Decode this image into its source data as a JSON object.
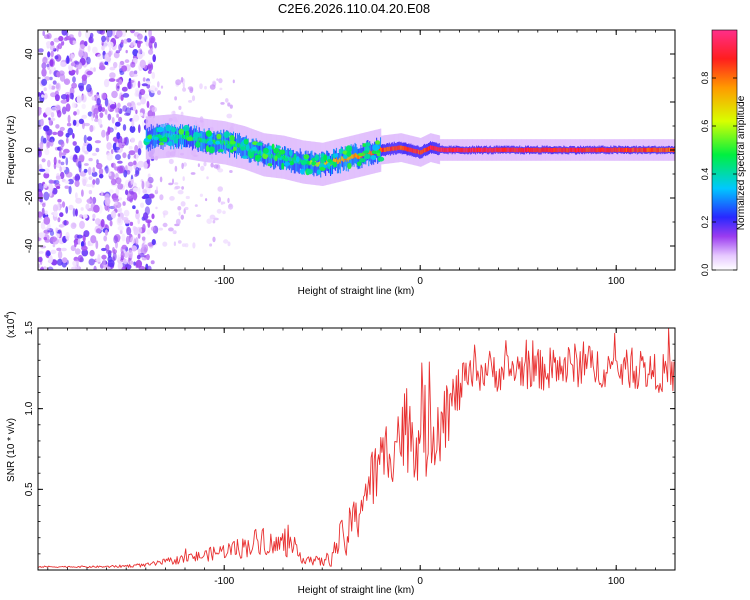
{
  "title": "C2E6.2026.110.04.20.E08",
  "colors": {
    "background": "#ffffff",
    "axis": "#000000",
    "snr_line": "#e83030",
    "axis_band": "#000000"
  },
  "colorbar": {
    "label": "Normalized spectral amplitude",
    "ticks": [
      "0.0",
      "0.2",
      "0.4",
      "0.6",
      "0.8"
    ],
    "tick_values": [
      0.0,
      0.2,
      0.4,
      0.6,
      0.8
    ],
    "range": [
      0,
      1
    ],
    "stops": [
      {
        "v": 0.0,
        "color": "#ffffff"
      },
      {
        "v": 0.06,
        "color": "#e6c8ff"
      },
      {
        "v": 0.14,
        "color": "#9b3cf0"
      },
      {
        "v": 0.22,
        "color": "#2828ff"
      },
      {
        "v": 0.34,
        "color": "#00c8ff"
      },
      {
        "v": 0.48,
        "color": "#00f040"
      },
      {
        "v": 0.62,
        "color": "#d8ff00"
      },
      {
        "v": 0.76,
        "color": "#ff9a00"
      },
      {
        "v": 0.88,
        "color": "#ff1e1e"
      },
      {
        "v": 1.0,
        "color": "#ff2e8a"
      }
    ]
  },
  "chart_data": [
    {
      "type": "heatmap",
      "name": "spectrogram",
      "xlabel": "Height of straight line (km)",
      "ylabel": "Frequency (Hz)",
      "xlim": [
        -195,
        130
      ],
      "ylim": [
        -50,
        50
      ],
      "xticks": [
        -100,
        0,
        100
      ],
      "xtick_labels": [
        "-100",
        "0",
        "100"
      ],
      "yticks": [
        -40,
        -20,
        0,
        20,
        40
      ],
      "ytick_labels": [
        "-40",
        "-20",
        "0",
        "20",
        "40"
      ],
      "zlim": [
        0,
        1
      ],
      "ridge": {
        "description": "dominant frequency trace vs height",
        "x": [
          -140,
          -125,
          -110,
          -100,
          -90,
          -80,
          -70,
          -60,
          -50,
          -40,
          -30,
          -20,
          -10,
          -5,
          0,
          5,
          10,
          50,
          100,
          130
        ],
        "y": [
          5,
          6,
          4,
          3,
          1,
          -2,
          -3,
          -5,
          -6,
          -4,
          -2,
          0,
          1,
          0,
          -1,
          1,
          0,
          0,
          0,
          0
        ],
        "amplitude": [
          0.35,
          0.4,
          0.45,
          0.45,
          0.42,
          0.4,
          0.42,
          0.45,
          0.7,
          0.75,
          0.8,
          0.85,
          0.85,
          0.9,
          0.85,
          0.9,
          0.92,
          0.9,
          0.88,
          0.82
        ]
      },
      "noise_region": {
        "x_range": [
          -195,
          -135
        ],
        "y_range": [
          -50,
          50
        ],
        "amplitude_range": [
          0.02,
          0.2
        ]
      }
    },
    {
      "type": "line",
      "name": "snr",
      "xlabel": "Height of straight line (km)",
      "ylabel": "SNR (10 * v/v)",
      "scale_label": "(x10",
      "scale_exponent": "4",
      "xlim": [
        -195,
        130
      ],
      "ylim": [
        0,
        1.5
      ],
      "xticks": [
        -100,
        0,
        100
      ],
      "xtick_labels": [
        "-100",
        "0",
        "100"
      ],
      "yticks": [
        0.5,
        1.0,
        1.5
      ],
      "ytick_labels": [
        "0.5",
        "1.0",
        "1.5"
      ],
      "series": [
        {
          "name": "SNR",
          "color": "#e83030",
          "x": [
            -195,
            -180,
            -160,
            -140,
            -130,
            -120,
            -110,
            -100,
            -90,
            -85,
            -80,
            -75,
            -70,
            -65,
            -60,
            -55,
            -50,
            -45,
            -40,
            -38,
            -35,
            -32,
            -30,
            -25,
            -20,
            -15,
            -10,
            -5,
            0,
            5,
            10,
            15,
            20,
            25,
            30,
            35,
            40,
            50,
            60,
            70,
            80,
            90,
            100,
            110,
            120,
            130
          ],
          "y": [
            0.02,
            0.02,
            0.02,
            0.03,
            0.05,
            0.07,
            0.09,
            0.12,
            0.14,
            0.17,
            0.2,
            0.14,
            0.17,
            0.12,
            0.08,
            0.06,
            0.05,
            0.08,
            0.22,
            0.15,
            0.32,
            0.3,
            0.45,
            0.55,
            0.65,
            0.78,
            0.85,
            0.88,
            0.82,
            0.88,
            0.95,
            1.0,
            1.12,
            1.2,
            1.22,
            1.25,
            1.22,
            1.25,
            1.24,
            1.25,
            1.27,
            1.26,
            1.25,
            1.24,
            1.22,
            1.22
          ],
          "noise": [
            0.005,
            0.005,
            0.006,
            0.012,
            0.02,
            0.03,
            0.04,
            0.05,
            0.07,
            0.08,
            0.1,
            0.08,
            0.08,
            0.06,
            0.04,
            0.03,
            0.03,
            0.06,
            0.1,
            0.1,
            0.14,
            0.14,
            0.16,
            0.2,
            0.22,
            0.25,
            0.27,
            0.28,
            0.3,
            0.3,
            0.28,
            0.2,
            0.15,
            0.1,
            0.12,
            0.12,
            0.12,
            0.12,
            0.13,
            0.14,
            0.14,
            0.13,
            0.12,
            0.12,
            0.12,
            0.12
          ]
        }
      ]
    }
  ]
}
